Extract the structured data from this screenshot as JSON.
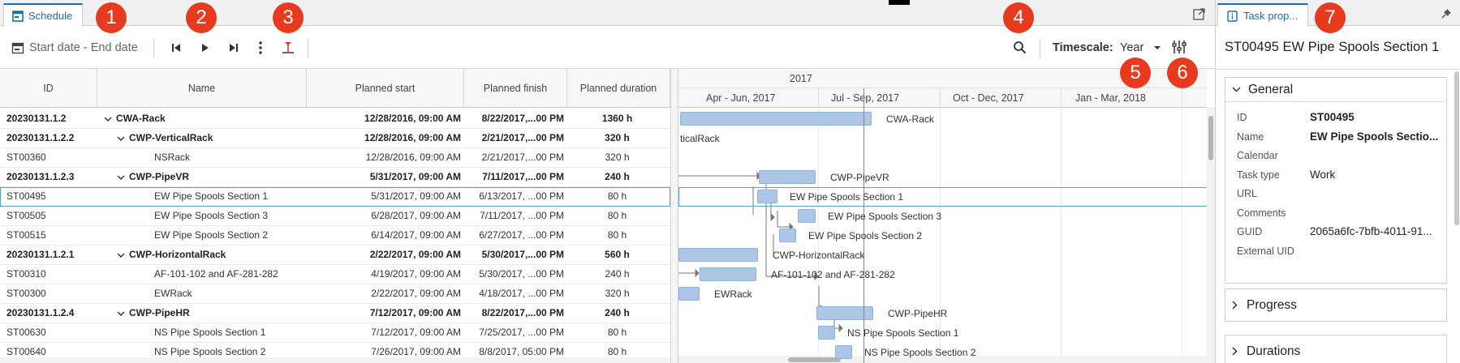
{
  "tabs": {
    "schedule": "Schedule",
    "task_properties": "Task prop..."
  },
  "toolbar": {
    "date_range": "Start date - End date",
    "timescale_label": "Timescale:",
    "timescale_value": "Year"
  },
  "columns": [
    "ID",
    "Name",
    "Planned start",
    "Planned finish",
    "Planned duration"
  ],
  "rows": [
    {
      "id": "20230131.1.2",
      "name": "CWA-Rack",
      "start": "12/28/2016, 09:00 AM",
      "finish": "8/22/2017,...00 PM",
      "duration": "1360 h",
      "bold": true,
      "level": 0,
      "expand": true
    },
    {
      "id": "20230131.1.2.2",
      "name": "CWP-VerticalRack",
      "start": "12/28/2016, 09:00 AM",
      "finish": "2/21/2017,...00 PM",
      "duration": "320 h",
      "bold": true,
      "level": 1,
      "expand": true
    },
    {
      "id": "ST00360",
      "name": "NSRack",
      "start": "12/28/2016, 09:00 AM",
      "finish": "2/21/2017,...00 PM",
      "duration": "320 h",
      "bold": false,
      "level": 2,
      "expand": false
    },
    {
      "id": "20230131.1.2.3",
      "name": "CWP-PipeVR",
      "start": "5/31/2017, 09:00 AM",
      "finish": "7/11/2017,...00 PM",
      "duration": "240 h",
      "bold": true,
      "level": 1,
      "expand": true
    },
    {
      "id": "ST00495",
      "name": "EW Pipe Spools Section 1",
      "start": "5/31/2017, 09:00 AM",
      "finish": "6/13/2017, ...00 PM",
      "duration": "80 h",
      "bold": false,
      "level": 2,
      "expand": false,
      "selected": true
    },
    {
      "id": "ST00505",
      "name": "EW Pipe Spools Section 3",
      "start": "6/28/2017, 09:00 AM",
      "finish": "7/11/2017, ...00 PM",
      "duration": "80 h",
      "bold": false,
      "level": 2,
      "expand": false
    },
    {
      "id": "ST00515",
      "name": "EW Pipe Spools Section 2",
      "start": "6/14/2017, 09:00 AM",
      "finish": "6/27/2017, ...00 PM",
      "duration": "80 h",
      "bold": false,
      "level": 2,
      "expand": false
    },
    {
      "id": "20230131.1.2.1",
      "name": "CWP-HorizontalRack",
      "start": "2/22/2017, 09:00 AM",
      "finish": "5/30/2017,...00 PM",
      "duration": "560 h",
      "bold": true,
      "level": 1,
      "expand": true
    },
    {
      "id": "ST00310",
      "name": "AF-101-102 and AF-281-282",
      "start": "4/19/2017, 09:00 AM",
      "finish": "5/30/2017, ...00 PM",
      "duration": "240 h",
      "bold": false,
      "level": 2,
      "expand": false
    },
    {
      "id": "ST00300",
      "name": "EWRack",
      "start": "2/22/2017, 09:00 AM",
      "finish": "4/18/2017, ...00 PM",
      "duration": "320 h",
      "bold": false,
      "level": 2,
      "expand": false
    },
    {
      "id": "20230131.1.2.4",
      "name": "CWP-PipeHR",
      "start": "7/12/2017, 09:00 AM",
      "finish": "8/22/2017,...00 PM",
      "duration": "240 h",
      "bold": true,
      "level": 1,
      "expand": true
    },
    {
      "id": "ST00630",
      "name": "NS Pipe Spools Section 1",
      "start": "7/12/2017, 09:00 AM",
      "finish": "7/25/2017, ...00 PM",
      "duration": "80 h",
      "bold": false,
      "level": 2,
      "expand": false
    },
    {
      "id": "ST00640",
      "name": "NS Pipe Spools Section 2",
      "start": "7/26/2017, 09:00 AM",
      "finish": "8/8/2017, 05:00 PM",
      "duration": "80 h",
      "bold": false,
      "level": 2,
      "expand": false
    }
  ],
  "gantt": {
    "year": "2017",
    "quarters": [
      "Apr - Jun, 2017",
      "Jul - Sep, 2017",
      "Oct - Dec, 2017",
      "Jan - Mar, 2018"
    ],
    "bar_labels": [
      "CWA-Rack",
      "ticalRack",
      "",
      "CWP-PipeVR",
      "EW Pipe Spools Section 1",
      "EW Pipe Spools Section 3",
      "EW Pipe Spools Section 2",
      "CWP-HorizontalRack",
      "AF-101-102 and AF-281-282",
      "EWRack",
      "CWP-PipeHR",
      "NS Pipe Spools Section 1",
      "NS Pipe Spools Section 2"
    ],
    "bar_color": "#aec6e6"
  },
  "properties": {
    "title": "ST00495 EW Pipe Spools Section 1",
    "general_label": "General",
    "fields": [
      {
        "label": "ID",
        "value": "ST00495",
        "bold": true
      },
      {
        "label": "Name",
        "value": "EW Pipe Spools Sectio...",
        "bold": true
      },
      {
        "label": "Calendar",
        "value": "",
        "bold": false
      },
      {
        "label": "Task type",
        "value": "Work",
        "bold": false
      },
      {
        "label": "URL",
        "value": "",
        "bold": false
      },
      {
        "label": "Comments",
        "value": "",
        "bold": false
      },
      {
        "label": "GUID",
        "value": "2065a6fc-7bfb-4011-91...",
        "bold": false
      },
      {
        "label": "External UID",
        "value": "",
        "bold": false
      }
    ],
    "progress_label": "Progress",
    "durations_label": "Durations"
  },
  "badges": [
    "1",
    "2",
    "3",
    "4",
    "5",
    "6",
    "7"
  ],
  "colors": {
    "accent": "#1a6fb0",
    "badge": "#e83a1f",
    "selection": "#5aa0d8"
  }
}
